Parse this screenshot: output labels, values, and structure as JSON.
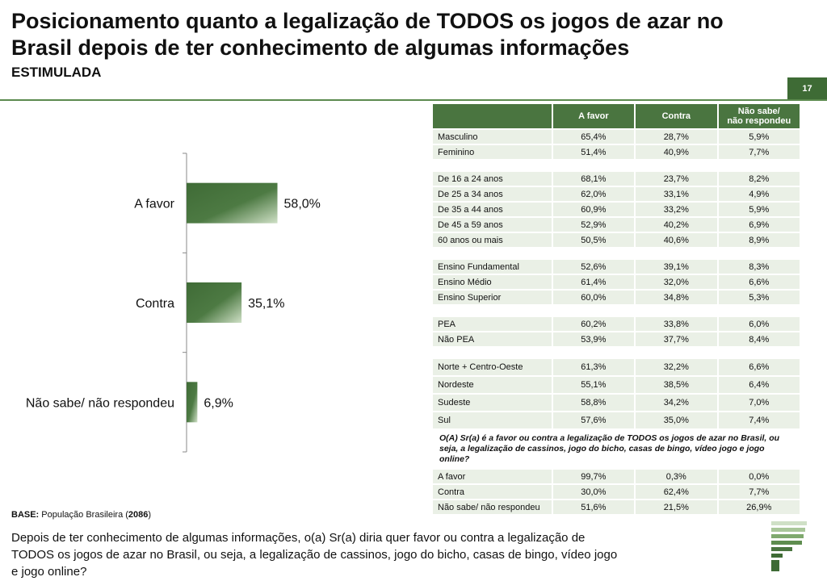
{
  "header": {
    "title": "Posicionamento quanto a legalização de TODOS os jogos de azar no Brasil depois de ter conhecimento de algumas informações",
    "subtitle": "ESTIMULADA",
    "page_number": "17"
  },
  "chart_data": {
    "type": "bar",
    "orientation": "horizontal",
    "categories": [
      "A favor",
      "Contra",
      "Não sabe/ não respondeu"
    ],
    "values": [
      58.0,
      35.1,
      6.9
    ],
    "value_labels": [
      "58,0%",
      "35,1%",
      "6,9%"
    ],
    "unit": "%",
    "xlim": [
      0,
      100
    ],
    "grid": false,
    "title": "",
    "xlabel": "",
    "ylabel": ""
  },
  "colors": {
    "accent": "#3e6b35",
    "bar_dark": "#3f6b36",
    "bar_light": "#cfe0c6",
    "table_header": "#4a7540",
    "table_cell": "#eaf0e6"
  },
  "table": {
    "headers": [
      "",
      "A favor",
      "Contra",
      "Não sabe/\nnão respondeu"
    ],
    "groups": [
      {
        "rows": [
          [
            "Masculino",
            "65,4%",
            "28,7%",
            "5,9%"
          ],
          [
            "Feminino",
            "51,4%",
            "40,9%",
            "7,7%"
          ]
        ]
      },
      {
        "rows": [
          [
            "De 16 a 24 anos",
            "68,1%",
            "23,7%",
            "8,2%"
          ],
          [
            "De 25 a 34 anos",
            "62,0%",
            "33,1%",
            "4,9%"
          ],
          [
            "De 35 a 44 anos",
            "60,9%",
            "33,2%",
            "5,9%"
          ],
          [
            "De 45 a 59 anos",
            "52,9%",
            "40,2%",
            "6,9%"
          ],
          [
            "60 anos ou mais",
            "50,5%",
            "40,6%",
            "8,9%"
          ]
        ]
      },
      {
        "rows": [
          [
            "Ensino Fundamental",
            "52,6%",
            "39,1%",
            "8,3%"
          ],
          [
            "Ensino Médio",
            "61,4%",
            "32,0%",
            "6,6%"
          ],
          [
            "Ensino Superior",
            "60,0%",
            "34,8%",
            "5,3%"
          ]
        ]
      },
      {
        "rows": [
          [
            "PEA",
            "60,2%",
            "33,8%",
            "6,0%"
          ],
          [
            "Não PEA",
            "53,9%",
            "37,7%",
            "8,4%"
          ]
        ]
      },
      {
        "tall": true,
        "rows": [
          [
            "Norte + Centro-Oeste",
            "61,3%",
            "32,2%",
            "6,6%"
          ],
          [
            "Nordeste",
            "55,1%",
            "38,5%",
            "6,4%"
          ],
          [
            "Sudeste",
            "58,8%",
            "34,2%",
            "7,0%"
          ],
          [
            "Sul",
            "57,6%",
            "35,0%",
            "7,4%"
          ]
        ]
      }
    ],
    "cross_question": "O(A) Sr(a) é a favor ou contra a legalização de TODOS os jogos de azar no Brasil, ou seja, a legalização de cassinos, jogo do bicho, casas de bingo, vídeo jogo e jogo online?",
    "cross_rows": [
      [
        "A favor",
        "99,7%",
        "0,3%",
        "0,0%"
      ],
      [
        "Contra",
        "30,0%",
        "62,4%",
        "7,7%"
      ],
      [
        "Não sabe/ não respondeu",
        "51,6%",
        "21,5%",
        "26,9%"
      ]
    ]
  },
  "footer": {
    "base_label": "BASE:",
    "base_text": "População Brasileira",
    "base_count": "2086",
    "question": "Depois de ter conhecimento de algumas informações, o(a) Sr(a) diria quer favor ou contra a legalização de TODOS os jogos de azar no Brasil, ou seja, a legalização de cassinos, jogo do bicho, casas de bingo, vídeo jogo e jogo online?"
  }
}
